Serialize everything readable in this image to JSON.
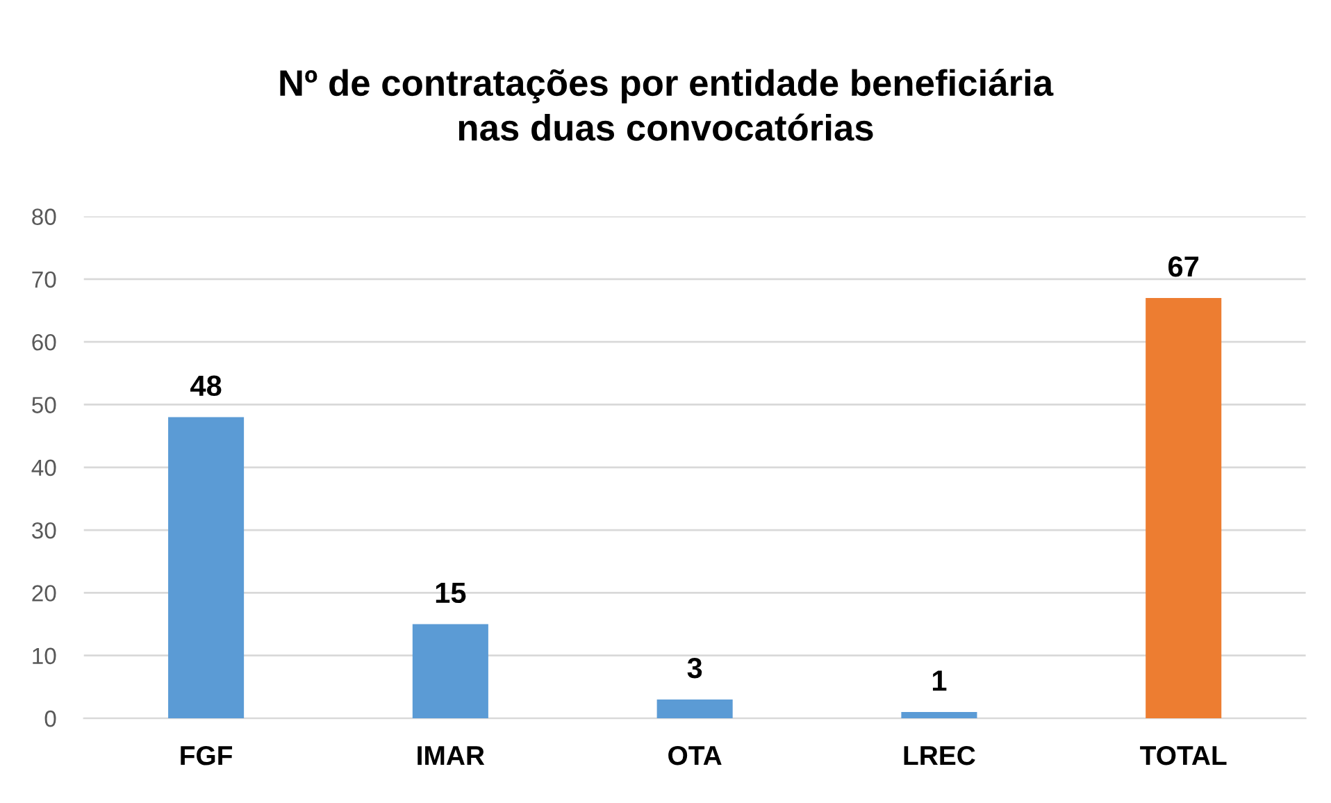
{
  "chart_data": {
    "type": "bar",
    "title": "Nº de contratações por entidade beneficiária\nnas duas convocatórias",
    "categories": [
      "FGF",
      "IMAR",
      "OTA",
      "LREC",
      "TOTAL"
    ],
    "values": [
      48,
      15,
      3,
      1,
      67
    ],
    "colors": [
      "#5b9bd5",
      "#5b9bd5",
      "#5b9bd5",
      "#5b9bd5",
      "#ed7d31"
    ],
    "ylim": [
      0,
      80
    ],
    "yticks": [
      0,
      10,
      20,
      30,
      40,
      50,
      60,
      70,
      80
    ],
    "grid": "y",
    "data_labels": true,
    "legend": false
  }
}
